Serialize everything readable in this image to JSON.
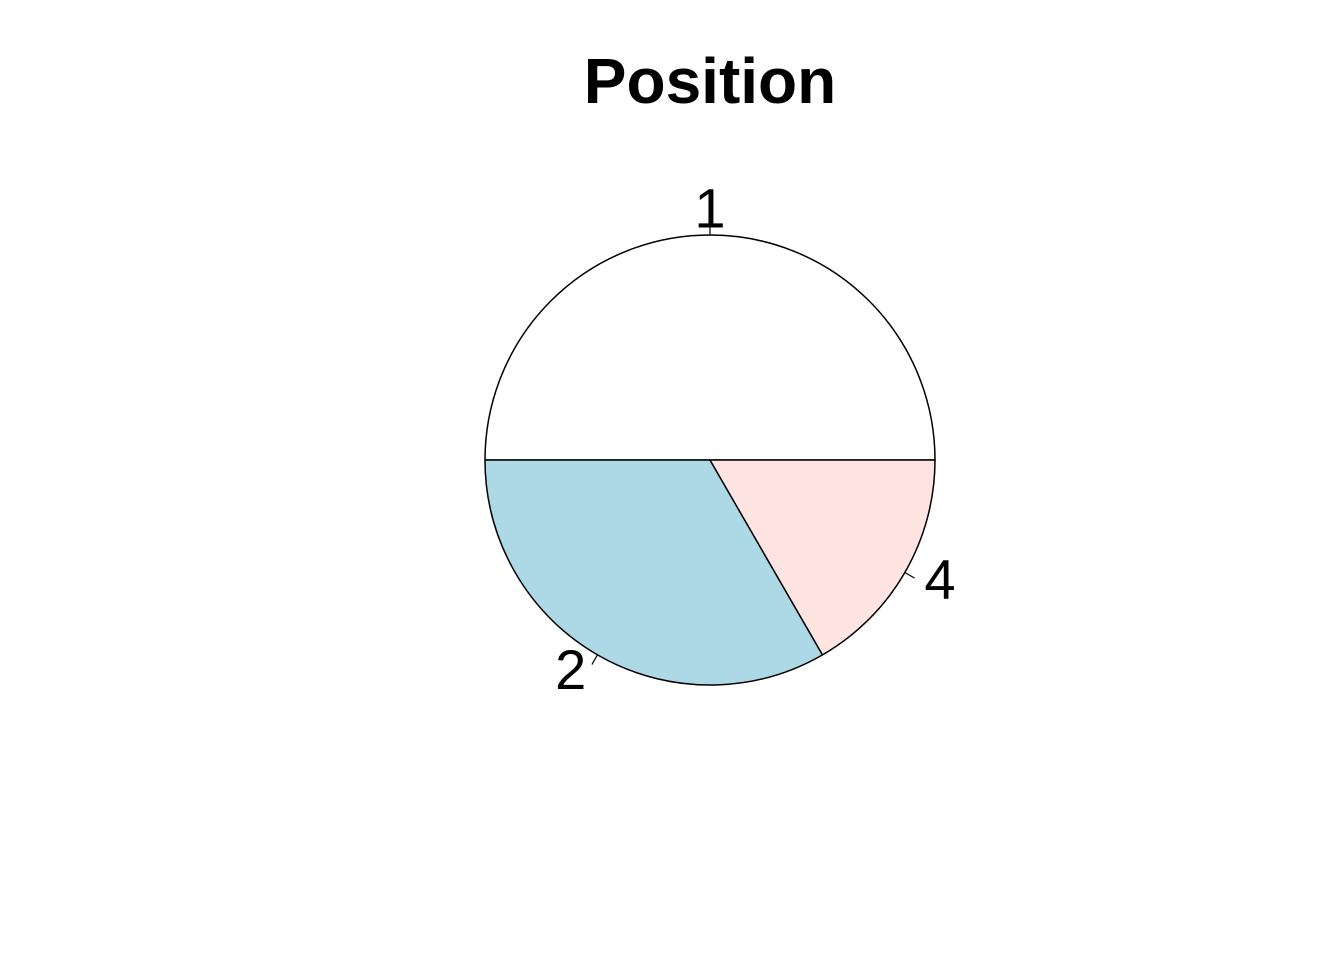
{
  "chart_data": {
    "type": "pie",
    "title": "Position",
    "labels": [
      "1",
      "2",
      "4"
    ],
    "values": [
      3,
      2,
      1
    ],
    "colors": [
      "#ffffff",
      "#add8e6",
      "#ffe4e1"
    ],
    "start_angle_deg": 0,
    "direction": "counterclockwise"
  }
}
